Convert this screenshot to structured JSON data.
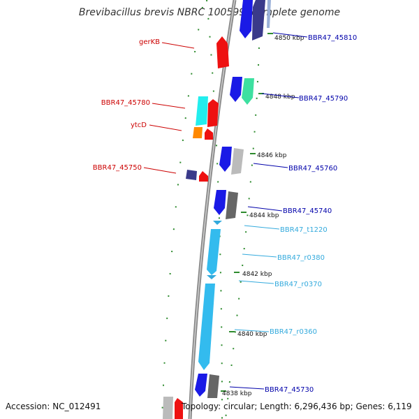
{
  "title": "Brevibacillus brevis NBRC 100599, complete genome",
  "accession": "Accession: NC_012491",
  "topology": "Topology: circular; Length: 6,296,436 bp; Genes: 6,119",
  "colors": {
    "backbone": "#999999",
    "dotted": "#2e8b2e",
    "forward_label": "#0000aa",
    "reverse_label": "#cc0000",
    "rna_label": "#33aadd"
  },
  "scale_labels": [
    {
      "text": "4850 kbp"
    },
    {
      "text": "4848 kbp"
    },
    {
      "text": "4846 kbp"
    },
    {
      "text": "4844 kbp"
    },
    {
      "text": "4842 kbp"
    },
    {
      "text": "4840 kbp"
    },
    {
      "text": "4838 kbp"
    }
  ],
  "gene_labels": [
    {
      "text": "BBR47_45810",
      "strand": "forward"
    },
    {
      "text": "BBR47_45790",
      "strand": "forward"
    },
    {
      "text": "BBR47_45760",
      "strand": "forward"
    },
    {
      "text": "BBR47_45740",
      "strand": "forward"
    },
    {
      "text": "BBR47_t1220",
      "strand": "rna"
    },
    {
      "text": "BBR47_r0380",
      "strand": "rna"
    },
    {
      "text": "BBR47_r0370",
      "strand": "rna"
    },
    {
      "text": "BBR47_r0360",
      "strand": "rna"
    },
    {
      "text": "BBR47_45730",
      "strand": "forward"
    },
    {
      "text": "gerKB",
      "strand": "reverse"
    },
    {
      "text": "BBR47_45780",
      "strand": "reverse"
    },
    {
      "text": "ytcD",
      "strand": "reverse"
    },
    {
      "text": "BBR47_45750",
      "strand": "reverse"
    }
  ]
}
